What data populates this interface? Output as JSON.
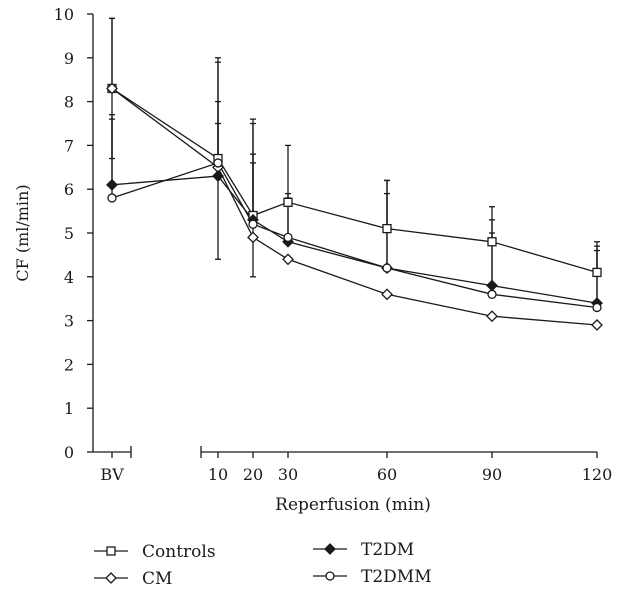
{
  "chart_data": {
    "type": "line",
    "title": "",
    "xlabel": "Reperfusion (min)",
    "ylabel": "CF (ml/min)",
    "ylim": [
      0,
      10
    ],
    "yticks": [
      "0",
      "1",
      "2",
      "3",
      "4",
      "5",
      "6",
      "7",
      "8",
      "9",
      "10"
    ],
    "categories": [
      "BV",
      "10",
      "20",
      "30",
      "60",
      "90",
      "120"
    ],
    "grid": false,
    "legend_position": "bottom",
    "series": [
      {
        "name": "Controls",
        "marker": "square-open",
        "values": [
          8.3,
          6.7,
          5.4,
          5.7,
          5.1,
          4.8,
          4.1
        ],
        "error_upper": [
          9.9,
          9.0,
          7.6,
          7.0,
          6.2,
          5.6,
          4.8
        ]
      },
      {
        "name": "CM",
        "marker": "diamond-open",
        "values": [
          8.3,
          6.5,
          4.9,
          4.4,
          3.6,
          3.1,
          2.9
        ],
        "error_upper": [
          9.9,
          8.9,
          6.6,
          null,
          null,
          null,
          null
        ],
        "error_lower": [
          6.7,
          4.4,
          4.0,
          null,
          null,
          null,
          null
        ]
      },
      {
        "name": "T2DM",
        "marker": "diamond-filled",
        "values": [
          6.1,
          6.3,
          5.3,
          4.8,
          4.2,
          3.8,
          3.4
        ],
        "error_upper": [
          7.7,
          7.5,
          7.5,
          5.9,
          6.2,
          5.0,
          4.7
        ]
      },
      {
        "name": "T2DMM",
        "marker": "circle-open",
        "values": [
          5.8,
          6.6,
          5.2,
          4.9,
          4.2,
          3.6,
          3.3
        ],
        "error_upper": [
          7.6,
          8.0,
          6.8,
          5.8,
          5.9,
          5.3,
          4.6
        ]
      }
    ]
  }
}
